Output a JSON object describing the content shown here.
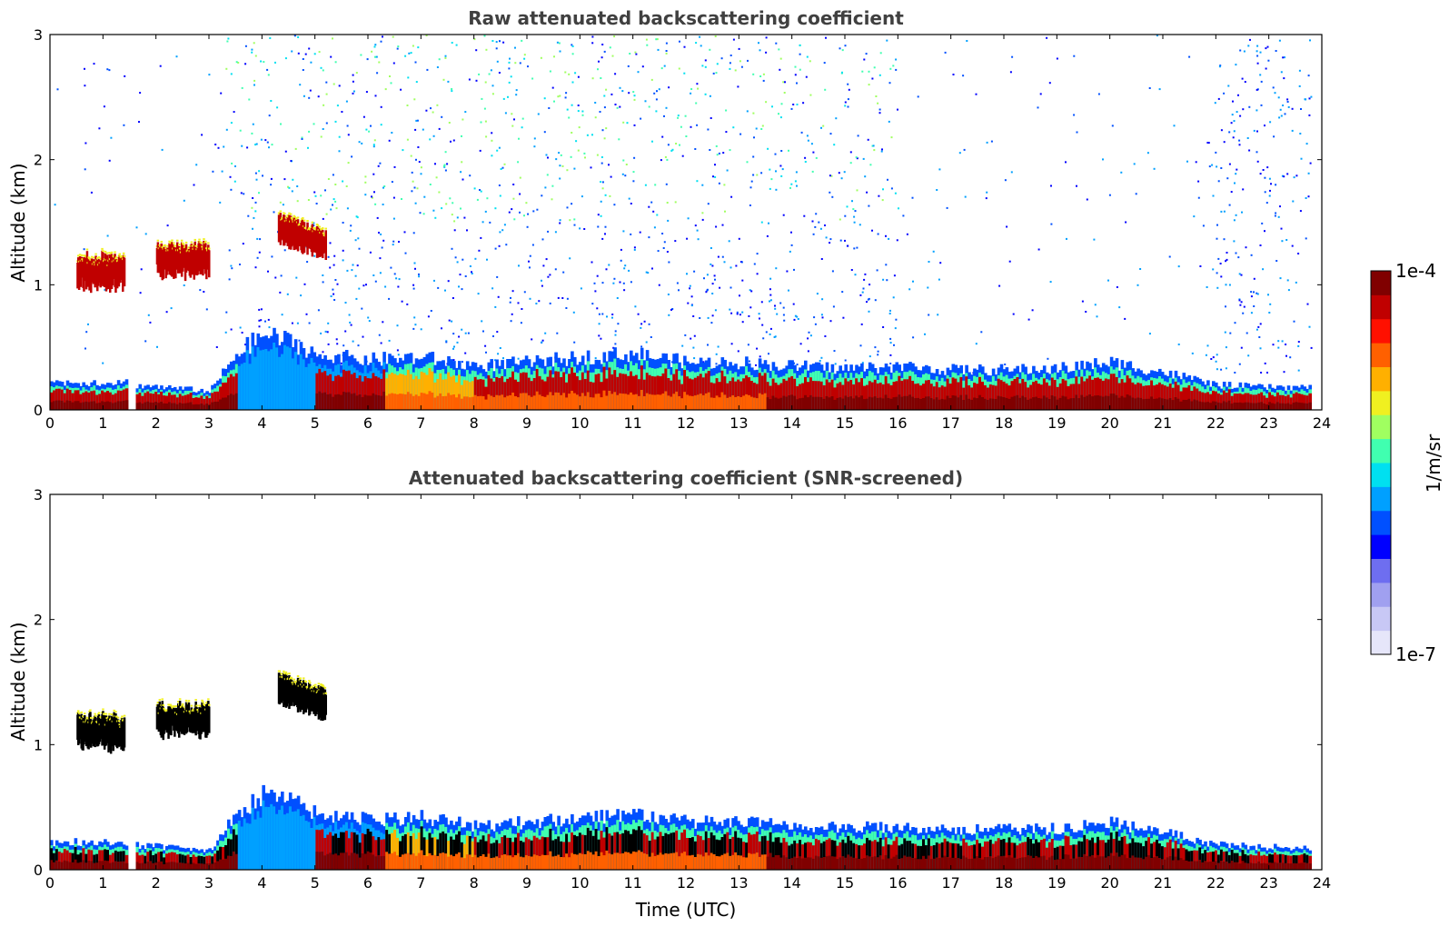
{
  "chart_data": [
    {
      "type": "heatmap",
      "title": "Raw attenuated backscattering coefficient",
      "xlabel": "",
      "ylabel": "Altitude (km)",
      "xlim": [
        0,
        24
      ],
      "ylim": [
        0,
        3
      ],
      "x_ticks": [
        0,
        1,
        2,
        3,
        4,
        5,
        6,
        7,
        8,
        9,
        10,
        11,
        12,
        13,
        14,
        15,
        16,
        17,
        18,
        19,
        20,
        21,
        22,
        23,
        24
      ],
      "y_ticks": [
        0,
        1,
        2,
        3
      ],
      "features": [
        {
          "kind": "boundary-layer",
          "t": [
            0,
            1.5,
            1.6,
            3,
            3.5,
            4,
            4.5,
            5,
            5.5,
            6,
            7,
            8,
            9,
            10,
            11,
            12,
            13,
            14,
            15,
            16,
            17,
            18,
            19,
            20,
            21,
            22,
            23,
            23.8
          ],
          "top_km": [
            0.22,
            0.22,
            0.2,
            0.15,
            0.45,
            0.6,
            0.55,
            0.45,
            0.42,
            0.4,
            0.42,
            0.35,
            0.38,
            0.42,
            0.45,
            0.38,
            0.38,
            0.35,
            0.33,
            0.35,
            0.32,
            0.32,
            0.33,
            0.38,
            0.3,
            0.2,
            0.18,
            0.18
          ]
        },
        {
          "kind": "cloud",
          "t_start": 0.5,
          "t_end": 1.4,
          "z_km": 1.1
        },
        {
          "kind": "cloud",
          "t_start": 2.0,
          "t_end": 3.0,
          "z_km": 1.2
        },
        {
          "kind": "cloud",
          "t_start": 4.3,
          "t_end": 5.2,
          "z_km": 1.45
        }
      ]
    },
    {
      "type": "heatmap",
      "title": "Attenuated backscattering coefficient (SNR-screened)",
      "xlabel": "Time (UTC)",
      "ylabel": "Altitude (km)",
      "xlim": [
        0,
        24
      ],
      "ylim": [
        0,
        3
      ],
      "x_ticks": [
        0,
        1,
        2,
        3,
        4,
        5,
        6,
        7,
        8,
        9,
        10,
        11,
        12,
        13,
        14,
        15,
        16,
        17,
        18,
        19,
        20,
        21,
        22,
        23,
        24
      ],
      "y_ticks": [
        0,
        1,
        2,
        3
      ],
      "features": [
        {
          "kind": "boundary-layer",
          "t": [
            0,
            1.5,
            1.6,
            3,
            3.5,
            4,
            4.5,
            5,
            5.5,
            6,
            7,
            8,
            9,
            10,
            11,
            12,
            13,
            14,
            15,
            16,
            17,
            18,
            19,
            20,
            21,
            22,
            23,
            23.8
          ],
          "top_km": [
            0.22,
            0.22,
            0.2,
            0.15,
            0.45,
            0.6,
            0.55,
            0.45,
            0.42,
            0.4,
            0.42,
            0.35,
            0.38,
            0.42,
            0.45,
            0.38,
            0.38,
            0.35,
            0.33,
            0.35,
            0.32,
            0.32,
            0.33,
            0.38,
            0.3,
            0.2,
            0.18,
            0.18
          ]
        },
        {
          "kind": "cloud",
          "t_start": 0.5,
          "t_end": 1.4,
          "z_km": 1.1
        },
        {
          "kind": "cloud",
          "t_start": 2.0,
          "t_end": 3.0,
          "z_km": 1.2
        },
        {
          "kind": "cloud",
          "t_start": 4.3,
          "t_end": 5.2,
          "z_km": 1.45
        }
      ]
    }
  ],
  "colorbar": {
    "min_label": "1e-7",
    "max_label": "1e-4",
    "unit_label": "1/m/sr",
    "colormap": "jet",
    "colors": [
      "#e6e6fa",
      "#c8c8f5",
      "#a0a0f0",
      "#6e6ef0",
      "#0000ff",
      "#0050ff",
      "#00a0ff",
      "#00e0f0",
      "#40ffb0",
      "#a0ff60",
      "#f0f020",
      "#ffb000",
      "#ff6000",
      "#ff1000",
      "#c00000",
      "#800000"
    ]
  }
}
